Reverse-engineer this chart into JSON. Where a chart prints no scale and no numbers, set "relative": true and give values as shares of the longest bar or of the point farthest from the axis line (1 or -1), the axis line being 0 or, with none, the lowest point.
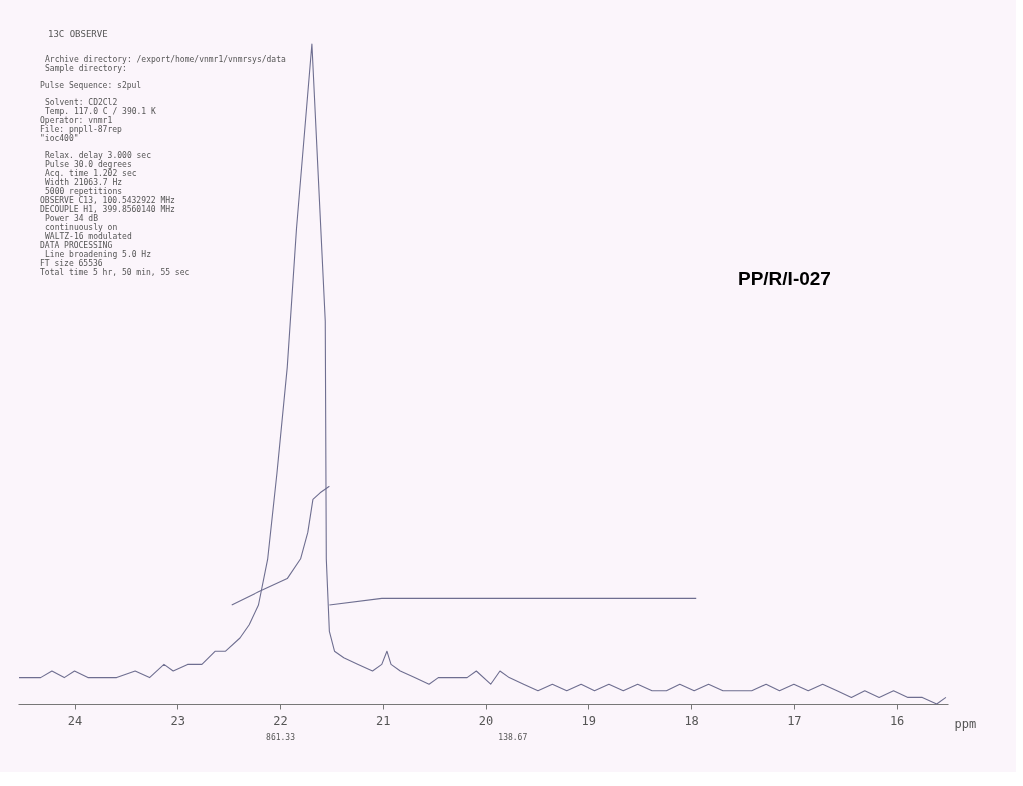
{
  "chart_data": {
    "type": "line",
    "title": "13C OBSERVE",
    "subtitle": "PP/R/I-027",
    "xlabel": "ppm",
    "relative": true,
    "xlim": [
      24.55,
      15.5
    ],
    "xticks": [
      24,
      23,
      22,
      21,
      20,
      19,
      18,
      17,
      16
    ],
    "grid": false,
    "marker": "none",
    "line_style": "solid",
    "series": [
      {
        "color": "#6e6e90",
        "x": [
          24.54,
          24.42,
          24.33,
          24.22,
          24.1,
          24.0,
          23.87,
          23.73,
          23.59,
          23.41,
          23.27,
          23.13,
          23.04,
          22.9,
          22.76,
          22.63,
          22.53,
          22.39,
          22.3,
          22.21,
          22.12,
          22.03,
          21.93,
          21.84,
          21.69,
          21.56,
          21.55,
          21.52,
          21.47,
          21.38,
          21.24,
          21.1,
          21.01,
          20.96,
          20.92,
          20.83,
          20.69,
          20.55,
          20.46,
          20.37,
          20.27,
          20.18,
          20.09,
          19.95,
          19.86,
          19.77,
          19.63,
          19.49,
          19.35,
          19.21,
          19.07,
          18.94,
          18.8,
          18.66,
          18.52,
          18.38,
          18.24,
          18.11,
          17.97,
          17.83,
          17.69,
          17.55,
          17.41,
          17.27,
          17.14,
          17.0,
          16.86,
          16.72,
          16.58,
          16.44,
          16.31,
          16.17,
          16.03,
          15.89,
          15.75,
          15.61,
          15.52
        ],
        "values": [
          0.04,
          0.04,
          0.04,
          0.05,
          0.04,
          0.05,
          0.04,
          0.04,
          0.04,
          0.05,
          0.04,
          0.06,
          0.05,
          0.06,
          0.06,
          0.08,
          0.08,
          0.1,
          0.12,
          0.15,
          0.22,
          0.35,
          0.51,
          0.72,
          1.0,
          0.58,
          0.22,
          0.11,
          0.08,
          0.07,
          0.06,
          0.05,
          0.06,
          0.08,
          0.06,
          0.05,
          0.04,
          0.03,
          0.04,
          0.04,
          0.04,
          0.04,
          0.05,
          0.03,
          0.05,
          0.04,
          0.03,
          0.02,
          0.03,
          0.02,
          0.03,
          0.02,
          0.03,
          0.02,
          0.03,
          0.02,
          0.02,
          0.03,
          0.02,
          0.03,
          0.02,
          0.02,
          0.02,
          0.03,
          0.02,
          0.03,
          0.02,
          0.03,
          0.02,
          0.01,
          0.02,
          0.01,
          0.02,
          0.01,
          0.01,
          0.0,
          0.01
        ]
      },
      {
        "color": "#6e6e90",
        "x": [
          22.47,
          22.21,
          21.93,
          21.8,
          21.73,
          21.68,
          21.61,
          21.52
        ],
        "values": [
          0.15,
          0.17,
          0.19,
          0.22,
          0.26,
          0.31,
          0.32,
          0.33
        ]
      },
      {
        "color": "#6e6e90",
        "x": [
          21.52,
          21.01,
          19.81,
          17.95
        ],
        "values": [
          0.15,
          0.16,
          0.16,
          0.16
        ]
      }
    ],
    "annotations": [
      "Archive directory: /export/home/vnmr1/vnmrsys/data",
      "Sample directory:",
      "Pulse Sequence: s2pul",
      "Solvent: CD2Cl2",
      "Temp. 117.0 C / 390.1 K",
      "Operator: vnmr1",
      "File: pnpll-87rep",
      "\"ioc400\"",
      "Relax. delay 3.000 sec",
      "Pulse 30.0 degrees",
      "Acq. time 1.202 sec",
      "Width 21063.7 Hz",
      "5000 repetitions",
      "OBSERVE  C13, 100.5432922 MHz",
      "DECOUPLE  H1, 399.8560140 MHz",
      "Power 34 dB",
      "continuously on",
      "WALTZ-16 modulated",
      "DATA PROCESSING",
      "Line broadening 5.0 Hz",
      "FT size 65536",
      "Total time 5 hr, 50 min, 55 sec",
      "861.33",
      "138.67"
    ]
  }
}
